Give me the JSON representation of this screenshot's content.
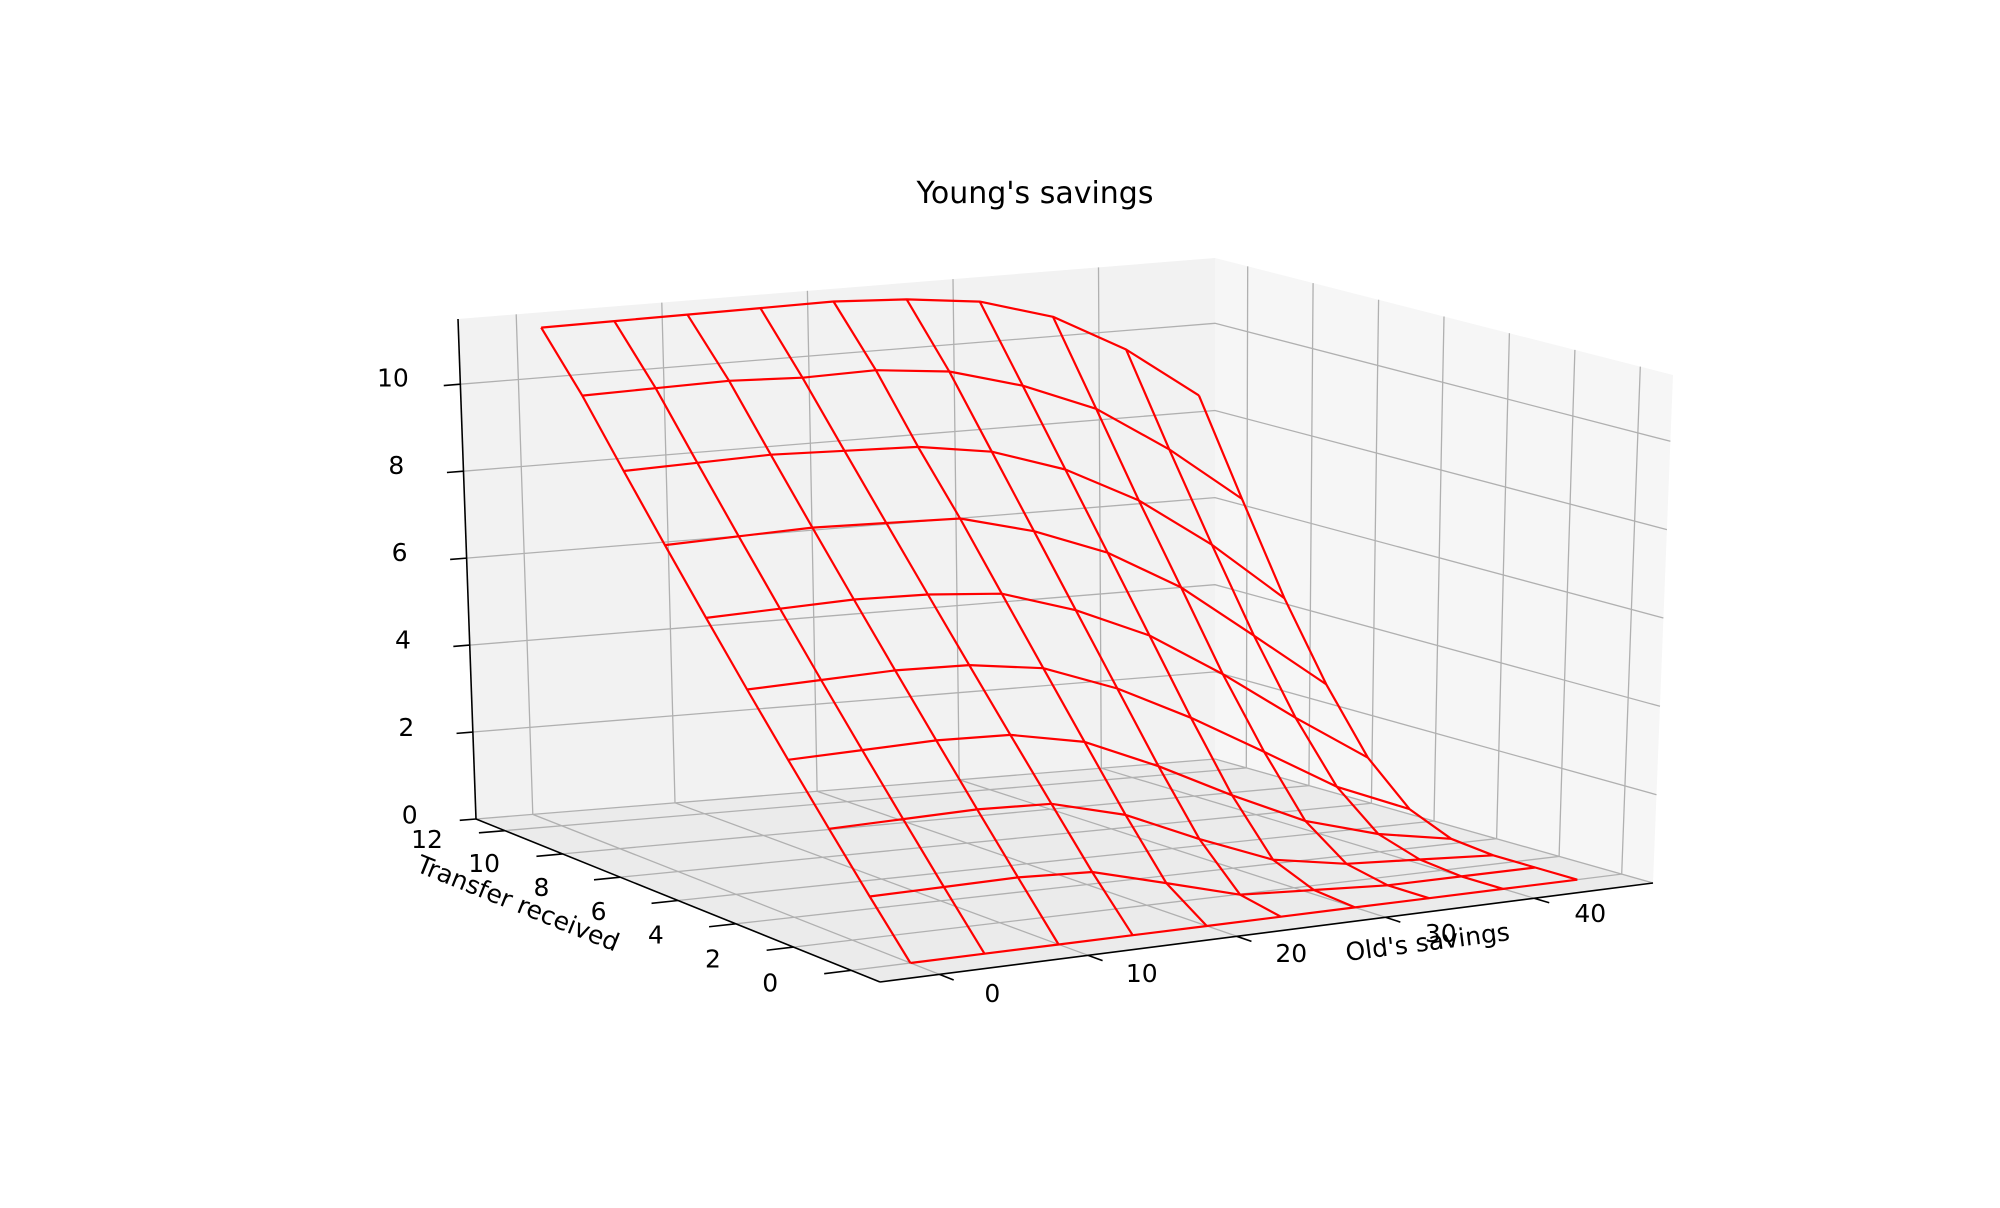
{
  "chart_data": {
    "type": "surface-wireframe",
    "title": "Young's savings",
    "xlabel": "Old's savings",
    "ylabel": "Transfer received",
    "zlabel": "",
    "xlim": [
      -4,
      48
    ],
    "ylim": [
      -1,
      13
    ],
    "zlim": [
      0,
      11.5
    ],
    "xticks": [
      0,
      10,
      20,
      30,
      40
    ],
    "yticks": [
      0,
      2,
      4,
      6,
      8,
      10,
      12
    ],
    "zticks": [
      0,
      2,
      4,
      6,
      8,
      10
    ],
    "grid": true,
    "line_color": "#ff0000",
    "x": [
      0,
      5,
      10,
      15,
      20,
      25,
      30,
      35,
      40,
      45
    ],
    "y": [
      0,
      1.35,
      2.7,
      4.05,
      5.4,
      6.75,
      8.1,
      9.45,
      10.8,
      12.15
    ],
    "z": [
      [
        0.0,
        0.0,
        0.0,
        0.0,
        0.0,
        0.0,
        0.0,
        0.0,
        0.0,
        0.0
      ],
      [
        1.3,
        1.3,
        1.3,
        1.2,
        0.7,
        0.2,
        0.1,
        0.0,
        0.0,
        0.0
      ],
      [
        2.6,
        2.6,
        2.6,
        2.5,
        2.0,
        1.2,
        0.5,
        0.2,
        0.1,
        0.0
      ],
      [
        3.9,
        3.9,
        3.9,
        3.8,
        3.4,
        2.6,
        1.7,
        0.9,
        0.4,
        0.1
      ],
      [
        5.2,
        5.2,
        5.2,
        5.1,
        4.8,
        4.1,
        3.2,
        2.2,
        1.2,
        0.5
      ],
      [
        6.5,
        6.5,
        6.5,
        6.4,
        6.2,
        5.6,
        4.8,
        3.7,
        2.5,
        1.4
      ],
      [
        7.8,
        7.8,
        7.8,
        7.7,
        7.6,
        7.1,
        6.4,
        5.4,
        4.1,
        2.8
      ],
      [
        9.1,
        9.1,
        9.1,
        9.0,
        8.9,
        8.6,
        8.0,
        7.1,
        5.9,
        4.5
      ],
      [
        10.4,
        10.4,
        10.4,
        10.3,
        10.3,
        10.1,
        9.6,
        8.9,
        7.8,
        6.5
      ],
      [
        11.5,
        11.5,
        11.5,
        11.5,
        11.5,
        11.4,
        11.2,
        10.7,
        9.8,
        8.6
      ]
    ]
  }
}
